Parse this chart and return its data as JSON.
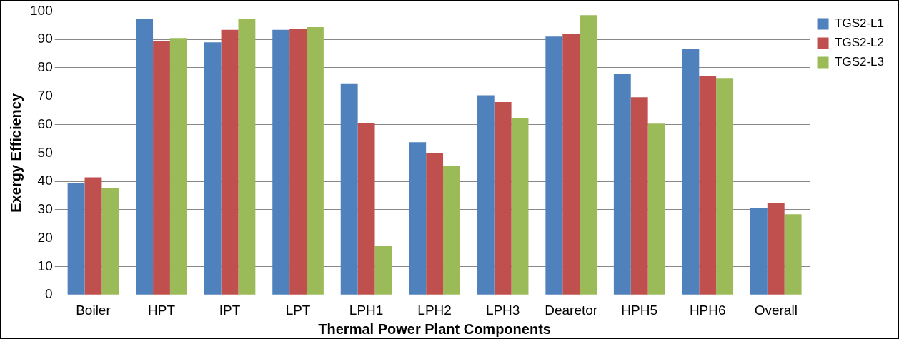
{
  "chart_data": {
    "type": "bar",
    "xlabel": "Thermal Power Plant Components",
    "ylabel": "Exergy Efficiency",
    "categories": [
      "Boiler",
      "HPT",
      "IPT",
      "LPT",
      "LPH1",
      "LPH2",
      "LPH3",
      "Dearetor",
      "HPH5",
      "HPH6",
      "Overall"
    ],
    "series": [
      {
        "name": "TGS2-L1",
        "color": "#4f81bd",
        "values": [
          39.3,
          97.2,
          89,
          93.4,
          74.5,
          53.8,
          70.3,
          91,
          77.7,
          86.7,
          30.5
        ]
      },
      {
        "name": "TGS2-L2",
        "color": "#c0504d",
        "values": [
          41.4,
          89.3,
          93.4,
          93.6,
          60.6,
          50.1,
          67.9,
          92,
          69.6,
          77.2,
          32.2
        ]
      },
      {
        "name": "TGS2-L3",
        "color": "#9bbb59",
        "values": [
          37.7,
          90.5,
          97.2,
          94.3,
          17.3,
          45.4,
          62.3,
          98.5,
          60.3,
          76.4,
          28.4
        ]
      }
    ],
    "ylim": [
      0,
      100
    ],
    "yticks": [
      0,
      10,
      20,
      30,
      40,
      50,
      60,
      70,
      80,
      90,
      100
    ],
    "grid": "y",
    "legend": "top right"
  }
}
